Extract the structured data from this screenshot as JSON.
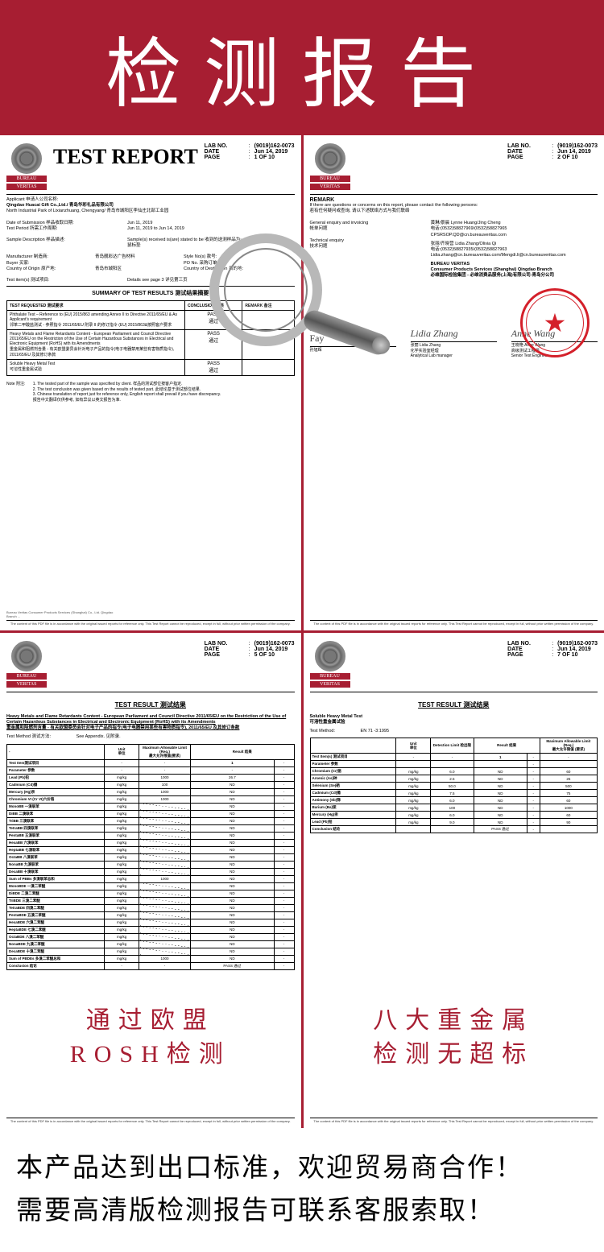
{
  "banner": {
    "title": "检测报告"
  },
  "logo": {
    "line1": "BUREAU",
    "line2": "VERITAS"
  },
  "meta": {
    "labno_label": "LAB NO.",
    "labno": "(9019)162-0073",
    "date_label": "DATE",
    "date": "Jun 14, 2019",
    "page_label": "PAGE"
  },
  "pages": {
    "p1": "1 OF 10",
    "p2": "2 OF 10",
    "p5": "5 OF 10",
    "p7": "7 OF 10"
  },
  "panel1": {
    "title": "TEST REPORT",
    "applicant_label": "Applicant 申请人公司名称:",
    "applicant": "Qingdao Huacai Gift Co.,Ltd./ 青岛华彩礼品有限公司",
    "address": "North Industrial Park of Lixianzhuang, Chengyang/ 青岛市城阳区李仙庄北部工业园",
    "dos_label": "Date of Submission 样品收取日期:",
    "dos": "Jun 11, 2019",
    "tp_label": "Test Period 所需工作周期:",
    "tp": "Jun 11, 2019 to Jun 14, 2019",
    "sd_label": "Sample Description 样品描述:",
    "sd": "Sample(s) received is(are) stated to be 收到的送测样品为:",
    "sd_val": "鼠标垫",
    "mfr_label": "Manufacturer 制造商:",
    "mfr": "青岛靓彩达广告材料",
    "style_label": "Style No(s) 款号:",
    "buyer_label": "Buyer 买家:",
    "po_label": "PO No. 采购订单号:",
    "coo_label": "Country of Origin 原产地:",
    "coo": "青岛市城阳区",
    "cod_label": "Country of Destination 目的地:",
    "tested_label": "Test item(s) 测试项目:",
    "tested": "Details see page 3 详见第三页",
    "summary_title": "SUMMARY OF TEST RESULTS 测试结果摘要",
    "col1": "TEST REQUESTED 测试要求",
    "col2": "CONCLUSION 结果",
    "col3": "REMARK 备注",
    "row1": "Phthalate Test – Reference to (EU) 2015/863 amending Annex II to Directive 2011/65/EU & As Applicant's requirement\n邻苯二甲酸盐测试 - 参照指令 2011/65/EU 附录 II 的修订指令 (EU) 2015/863&按照客户要求",
    "row2": "Heavy Metals and Flame Retardants Content - European Parliament and Council Directive 2011/65/EU on the Restriction of the Use of Certain Hazardous Substances in Electrical and Electronic Equipment (RoHS) with its Amendments\n重金属和阻燃剂含量 - 有关欧盟委员会针对电子产品的指令(电子电器禁用某些有害物质指令), 2011/65/EU 及其修订条款",
    "row3": "Soluble Heavy Metal Test\n可溶性重金属试验",
    "pass": "PASS\n通过",
    "note_label": "Note 附注:",
    "note": "1. The tested part of the sample was specified by client. 样品的测试部位按客户指定.\n2. The test conclusion was given based on the results of tested part. 此结论基于测试部位结果.\n3. Chinese translation of report just for reference only, English report shall prevail if you have discrepancy.\n报告中文翻译仅供参考, 如有异议以英文报告为准."
  },
  "panel2": {
    "remark_title": "REMARK",
    "remark_line": "If there are questions or concerns on this report, please contact the following persons:",
    "remark_line_cn": "若有任何疑问或查询, 请以下述联络方式与我们联络",
    "gei_label": "General enquiry and invoicing",
    "gei_cn": "帐单问题",
    "te_label": "Technical enquiry",
    "te_cn": "技术问题",
    "contact1": "黄琳/景晨 Lynne Huang/Jing Cheng\n电话:(0532)58827969/(0532)58827965\nCPSRSOP.QD@cn.bureauveritas.com",
    "contact2": "张丽/齐晓营 Lidia Zhang/Olivia Qi\n电话:(0532)58827935/(0532)58827963\nLidia.zhang@cn.bureauveritas.com/Mengdi.li@cn.bureauveritas.com",
    "bv": "BUREAU VERITAS\nConsumer Products Services (Shanghai) Qingdao Branch\n必维国际检验集团 - 必维消费品服务(上海)有限公司-青岛分公司",
    "prepby": "PREPARED BY:",
    "prepby_cn": "孙旭辉",
    "sig1_name": "Fay",
    "sig2_script": "Lidia Zhang",
    "sig2_name": "张丽    Lidia Zhang",
    "sig2_title": "化学实验室经理\nAnalytical Lab manager",
    "sig3_script": "Anne Wang",
    "sig3_name": "王晓艳    Anne Wang",
    "sig3_title": "高级测试工程师\nSenior Test Engineer"
  },
  "panel3": {
    "subtitle": "TEST RESULT 测试结果",
    "heading": "Heavy Metals and Flame Retardants Content - European Parliament and Council Directive 2011/65/EU on the Restriction of the Use of Certain Hazardous Substances in Electrical and Electronic Equipment (RoHS) with its Amendments\n重金属和阻燃剂含量 - 有关欧盟委员会针对电子产品的指令(电子电器禁用某些有害物质指令), 2011/65/EU 及其修订条款",
    "method_label": "Test Method 测试方法:",
    "method": "See Appendix. 见附录.",
    "cols": [
      "",
      "Unit\n单位",
      "Maximum Allowable Limit (Req.)\n最大允许限值(要求)",
      "Result 结果"
    ],
    "row_labels": [
      "Test Item测试项目",
      "Parameter 参数",
      "Lead (Pb)铅",
      "Cadmium (Cd)镉",
      "Mercury (Hg)汞",
      "Chromium VI (Cr VI)六价铬",
      "MonoBB 一溴联苯",
      "DiBB 二溴联苯",
      "TriBB 三溴联苯",
      "TetraBB 四溴联苯",
      "PentaBB 五溴联苯",
      "HexaBB 六溴联苯",
      "HeptaBB 七溴联苯",
      "OctaBB 八溴联苯",
      "NonaBB 九溴联苯",
      "DecaBB 十溴联苯",
      "Sum of PBBs 多溴联苯总和",
      "MonoBDE 一溴二苯醚",
      "DiBDE 二溴二苯醚",
      "TriBDE 三溴二苯醚",
      "TetraBDE 四溴二苯醚",
      "PentaBDE 五溴二苯醚",
      "HexaBDE 六溴二苯醚",
      "HeptaBDE 七溴二苯醚",
      "OctaBDE 八溴二苯醚",
      "NonaBDE 九溴二苯醚",
      "DecaBDE 十溴二苯醚",
      "Sum of PBDEs 多溴二苯醚总和",
      "Conclusion 结论"
    ],
    "units": [
      "-",
      "-",
      "mg/kg",
      "mg/kg",
      "mg/kg",
      "mg/kg",
      "mg/kg",
      "mg/kg",
      "mg/kg",
      "mg/kg",
      "mg/kg",
      "mg/kg",
      "mg/kg",
      "mg/kg",
      "mg/kg",
      "mg/kg",
      "mg/kg",
      "mg/kg",
      "mg/kg",
      "mg/kg",
      "mg/kg",
      "mg/kg",
      "mg/kg",
      "mg/kg",
      "mg/kg",
      "mg/kg",
      "mg/kg",
      "mg/kg",
      "-"
    ],
    "limits": [
      "-",
      "-",
      "1000",
      "100",
      "1000",
      "1000",
      "",
      "",
      "",
      "",
      "",
      "",
      "",
      "",
      "",
      "",
      "1000",
      "",
      "",
      "",
      "",
      "",
      "",
      "",
      "",
      "",
      "",
      "1000",
      "-"
    ],
    "results_h": "1",
    "results": [
      "-",
      "-",
      "26.7",
      "ND",
      "ND",
      "ND",
      "ND",
      "ND",
      "ND",
      "ND",
      "ND",
      "ND",
      "ND",
      "ND",
      "ND",
      "ND",
      "ND",
      "ND",
      "ND",
      "ND",
      "ND",
      "ND",
      "ND",
      "ND",
      "ND",
      "ND",
      "ND",
      "ND",
      "PASS 通过"
    ],
    "caption1": "通过欧盟",
    "caption2": "ROSH检测"
  },
  "panel4": {
    "subtitle": "TEST RESULT 测试结果",
    "heading": "Soluble Heavy Metal Test\n可溶性重金属试验",
    "method_label": "Test Method:",
    "method": "EN 71 -3:1995",
    "cols": [
      "",
      "Unit\n单位",
      "Detection Limit 检出限",
      "Result 结果",
      "Maximum Allowable Limit (Req.)\n最大允许限值 (要求)"
    ],
    "subcol": "1",
    "rows": [
      [
        "Test Item(s) 测试项目",
        "-",
        "-",
        "-",
        "-"
      ],
      [
        "Parameter 参数",
        "",
        "",
        "",
        ""
      ],
      [
        "Chromium (Cr)铬",
        "mg/kg",
        "6.0",
        "ND",
        "60"
      ],
      [
        "Arsenic (As)砷",
        "mg/kg",
        "2.5",
        "ND",
        "25"
      ],
      [
        "Selenium (Se)硒",
        "mg/kg",
        "50.0",
        "ND",
        "500"
      ],
      [
        "Cadmium (Cd)镉",
        "mg/kg",
        "7.5",
        "ND",
        "75"
      ],
      [
        "Antimony (Sb)锑",
        "mg/kg",
        "6.0",
        "ND",
        "60"
      ],
      [
        "Barium (Ba)钡",
        "mg/kg",
        "100",
        "ND",
        "1000"
      ],
      [
        "Mercury (Hg)汞",
        "mg/kg",
        "6.0",
        "ND",
        "60"
      ],
      [
        "Lead (Pb)铅",
        "mg/kg",
        "9.0",
        "ND",
        "90"
      ],
      [
        "Conclusion 结论",
        "",
        "",
        "PASS 通过",
        ""
      ]
    ],
    "caption1": "八大重金属",
    "caption2": "检测无超标"
  },
  "footer": {
    "addr": "Bureau Veritas Consumer Products Services (Shanghai) Co., Ltd. Qingdao Branch ...",
    "disclaimer": "The content of this PDF file is in accordance with the original issued reports for reference only. This Test Report cannot be reproduced, except in full, without prior written permission of the company."
  },
  "bottom": {
    "line1": "本产品达到出口标准，欢迎贸易商合作！",
    "line2": "需要高清版检测报告可联系客服索取！"
  }
}
